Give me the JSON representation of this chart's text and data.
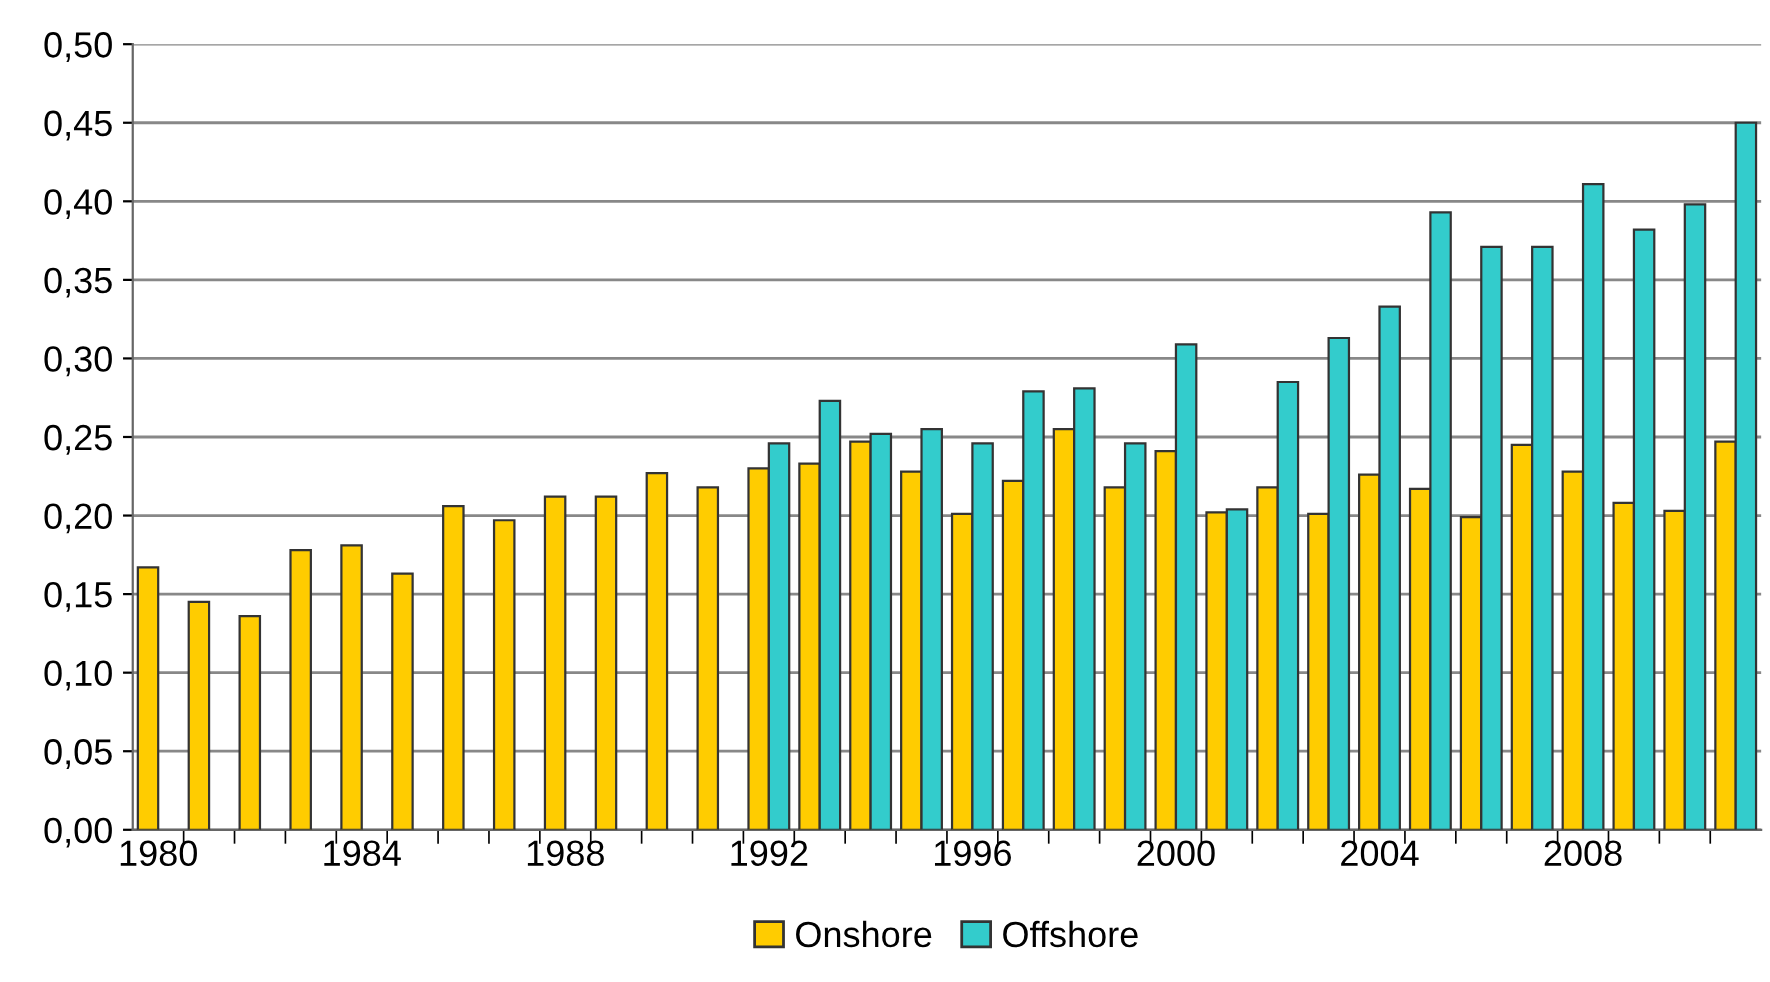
{
  "chart_data": {
    "type": "bar",
    "categories": [
      "1980",
      null,
      null,
      null,
      "1984",
      null,
      null,
      null,
      "1988",
      null,
      null,
      null,
      "1992",
      null,
      null,
      null,
      "1996",
      null,
      null,
      null,
      "2000",
      null,
      null,
      null,
      "2004",
      null,
      null,
      null,
      "2008",
      null,
      null,
      null
    ],
    "series": [
      {
        "name": "Onshore",
        "color": "#ffcc00",
        "values": [
          0.167,
          0.145,
          0.136,
          0.178,
          0.181,
          0.163,
          0.206,
          0.197,
          0.212,
          0.212,
          0.227,
          0.218,
          0.23,
          0.233,
          0.247,
          0.228,
          0.201,
          0.222,
          0.255,
          0.218,
          0.241,
          0.202,
          0.218,
          0.201,
          0.226,
          0.217,
          0.199,
          0.245,
          0.228,
          0.208,
          0.203,
          0.247
        ]
      },
      {
        "name": "Offshore",
        "color": "#33cccc",
        "values": [
          null,
          null,
          null,
          null,
          null,
          null,
          null,
          null,
          null,
          null,
          null,
          null,
          0.246,
          0.273,
          0.252,
          0.255,
          0.246,
          0.279,
          0.281,
          0.246,
          0.309,
          0.204,
          0.285,
          0.313,
          0.333,
          0.393,
          0.371,
          0.371,
          0.411,
          0.382,
          0.398,
          0.45
        ]
      }
    ],
    "ylim": [
      0,
      0.5
    ],
    "yticks": [
      {
        "value": 0,
        "label": "0,00"
      },
      {
        "value": 0.05,
        "label": "0,05"
      },
      {
        "value": 0.1,
        "label": "0,10"
      },
      {
        "value": 0.15,
        "label": "0,15"
      },
      {
        "value": 0.2,
        "label": "0,20"
      },
      {
        "value": 0.25,
        "label": "0,25"
      },
      {
        "value": 0.3,
        "label": "0,30"
      },
      {
        "value": 0.35,
        "label": "0,35"
      },
      {
        "value": 0.4,
        "label": "0,40"
      },
      {
        "value": 0.45,
        "label": "0,45"
      },
      {
        "value": 0.5,
        "label": "0,50"
      }
    ],
    "grid": "y",
    "legend": "bottom"
  }
}
